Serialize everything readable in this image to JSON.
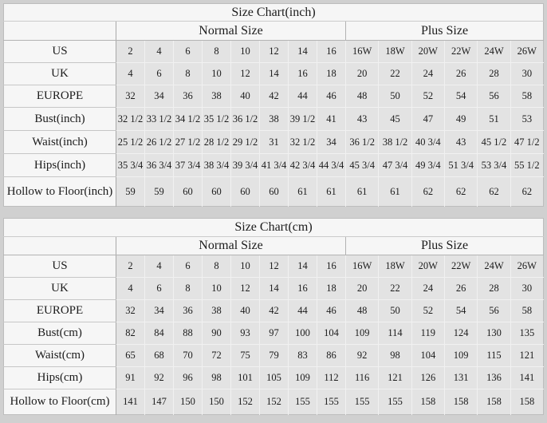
{
  "colors": {
    "page_background": "#d0d0d0",
    "header_background": "#f6f6f6",
    "cell_background": "#e3e3e3",
    "text": "#1c1c1c"
  },
  "chart_data": [
    {
      "type": "table",
      "title": "Size Chart(inch)",
      "column_groups": [
        {
          "label": "Normal Size",
          "span": 8
        },
        {
          "label": "Plus Size",
          "span": 6
        }
      ],
      "rows": [
        {
          "label": "US",
          "values": [
            "2",
            "4",
            "6",
            "8",
            "10",
            "12",
            "14",
            "16",
            "16W",
            "18W",
            "20W",
            "22W",
            "24W",
            "26W"
          ]
        },
        {
          "label": "UK",
          "values": [
            "4",
            "6",
            "8",
            "10",
            "12",
            "14",
            "16",
            "18",
            "20",
            "22",
            "24",
            "26",
            "28",
            "30"
          ]
        },
        {
          "label": "EUROPE",
          "values": [
            "32",
            "34",
            "36",
            "38",
            "40",
            "42",
            "44",
            "46",
            "48",
            "50",
            "52",
            "54",
            "56",
            "58"
          ]
        },
        {
          "label": "Bust(inch)",
          "values": [
            "32 1/2",
            "33 1/2",
            "34 1/2",
            "35 1/2",
            "36 1/2",
            "38",
            "39 1/2",
            "41",
            "43",
            "45",
            "47",
            "49",
            "51",
            "53"
          ]
        },
        {
          "label": "Waist(inch)",
          "values": [
            "25 1/2",
            "26 1/2",
            "27 1/2",
            "28 1/2",
            "29 1/2",
            "31",
            "32 1/2",
            "34",
            "36 1/2",
            "38 1/2",
            "40 3/4",
            "43",
            "45 1/2",
            "47 1/2"
          ]
        },
        {
          "label": "Hips(inch)",
          "values": [
            "35 3/4",
            "36 3/4",
            "37 3/4",
            "38 3/4",
            "39 3/4",
            "41 3/4",
            "42 3/4",
            "44 3/4",
            "45 3/4",
            "47 3/4",
            "49 3/4",
            "51 3/4",
            "53 3/4",
            "55 1/2"
          ]
        },
        {
          "label": "Hollow to Floor(inch)",
          "values": [
            "59",
            "59",
            "60",
            "60",
            "60",
            "60",
            "61",
            "61",
            "61",
            "61",
            "62",
            "62",
            "62",
            "62"
          ]
        }
      ]
    },
    {
      "type": "table",
      "title": "Size Chart(cm)",
      "column_groups": [
        {
          "label": "Normal Size",
          "span": 8
        },
        {
          "label": "Plus Size",
          "span": 6
        }
      ],
      "rows": [
        {
          "label": "US",
          "values": [
            "2",
            "4",
            "6",
            "8",
            "10",
            "12",
            "14",
            "16",
            "16W",
            "18W",
            "20W",
            "22W",
            "24W",
            "26W"
          ]
        },
        {
          "label": "UK",
          "values": [
            "4",
            "6",
            "8",
            "10",
            "12",
            "14",
            "16",
            "18",
            "20",
            "22",
            "24",
            "26",
            "28",
            "30"
          ]
        },
        {
          "label": "EUROPE",
          "values": [
            "32",
            "34",
            "36",
            "38",
            "40",
            "42",
            "44",
            "46",
            "48",
            "50",
            "52",
            "54",
            "56",
            "58"
          ]
        },
        {
          "label": "Bust(cm)",
          "values": [
            "82",
            "84",
            "88",
            "90",
            "93",
            "97",
            "100",
            "104",
            "109",
            "114",
            "119",
            "124",
            "130",
            "135"
          ]
        },
        {
          "label": "Waist(cm)",
          "values": [
            "65",
            "68",
            "70",
            "72",
            "75",
            "79",
            "83",
            "86",
            "92",
            "98",
            "104",
            "109",
            "115",
            "121"
          ]
        },
        {
          "label": "Hips(cm)",
          "values": [
            "91",
            "92",
            "96",
            "98",
            "101",
            "105",
            "109",
            "112",
            "116",
            "121",
            "126",
            "131",
            "136",
            "141"
          ]
        },
        {
          "label": "Hollow to Floor(cm)",
          "values": [
            "141",
            "147",
            "150",
            "150",
            "152",
            "152",
            "155",
            "155",
            "155",
            "155",
            "158",
            "158",
            "158",
            "158"
          ]
        }
      ]
    }
  ]
}
